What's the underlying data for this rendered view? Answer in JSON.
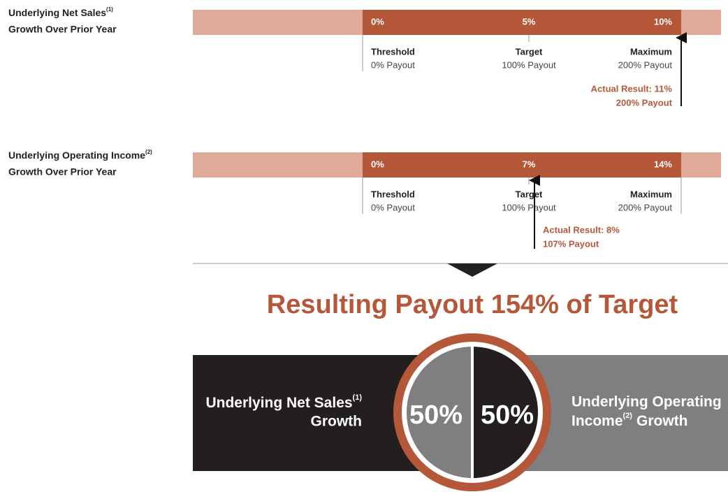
{
  "metrics": [
    {
      "label": "Underlying Net Sales",
      "note": "(1)",
      "label2": "Growth Over Prior Year",
      "scale": [
        "0%",
        "5%",
        "10%"
      ],
      "levels": [
        {
          "name": "Threshold",
          "payout": "0% Payout"
        },
        {
          "name": "Target",
          "payout": "100% Payout"
        },
        {
          "name": "Maximum",
          "payout": "200% Payout"
        }
      ],
      "actual": [
        "Actual Result: 11%",
        "200% Payout"
      ]
    },
    {
      "label": "Underlying Operating Income",
      "note": "(2)",
      "label2": "Growth Over Prior Year",
      "scale": [
        "0%",
        "7%",
        "14%"
      ],
      "levels": [
        {
          "name": "Threshold",
          "payout": "0% Payout"
        },
        {
          "name": "Target",
          "payout": "100% Payout"
        },
        {
          "name": "Maximum",
          "payout": "200% Payout"
        }
      ],
      "actual": [
        "Actual Result: 8%",
        "107% Payout"
      ]
    }
  ],
  "title": "Resulting Payout 154% of Target",
  "weights": {
    "left": {
      "label": "Underlying Net Sales",
      "note": "(1)",
      "label2": "Growth",
      "share": "50%"
    },
    "right": {
      "label": "Underlying Operating",
      "label2": "Income",
      "note": "(2)",
      "label3": "Growth",
      "share": "50%"
    }
  }
}
